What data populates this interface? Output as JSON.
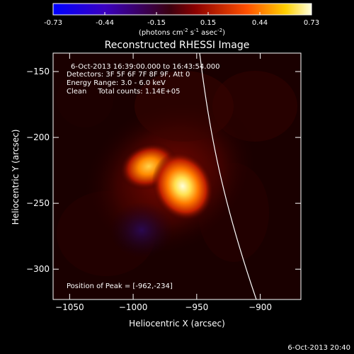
{
  "colorbar": {
    "ticks": [
      "-0.73",
      "-0.44",
      "-0.15",
      "0.15",
      "0.44",
      "0.73"
    ],
    "units_prefix": "(photons cm",
    "units_exp1": "-2",
    "units_mid": " s",
    "units_exp2": "-1",
    "units_end": " asec",
    "units_exp3": "-2",
    "units_close": ")"
  },
  "chart_data": {
    "type": "heatmap",
    "title": "Reconstructed RHESSI Image",
    "xlabel": "Heliocentric X (arcsec)",
    "ylabel": "Heliocentric Y (arcsec)",
    "xlim": [
      -1063,
      -868
    ],
    "ylim": [
      -323,
      -136
    ],
    "xticks": [
      -1050,
      -1000,
      -950,
      -900
    ],
    "yticks": [
      -150,
      -200,
      -250,
      -300
    ],
    "colorbar_range": [
      -0.73,
      0.73
    ],
    "sources": [
      {
        "x": -962,
        "y": -234,
        "relative_intensity": 1.0
      },
      {
        "x": -990,
        "y": -218,
        "relative_intensity": 0.8
      }
    ],
    "annotations": [
      "6-Oct-2013 16:39:00.000 to 16:43:54.000",
      "Detectors: 3F 5F 6F 7F 8F 9F, Att 0",
      "Energy Range: 3.0 - 6.0 keV",
      "Clean     Total counts: 1.14E+05"
    ],
    "peak_label": "Position of Peak = [-962,-234]",
    "grid": false,
    "legend": "none"
  },
  "footer_date": "6-Oct-2013 20:40"
}
